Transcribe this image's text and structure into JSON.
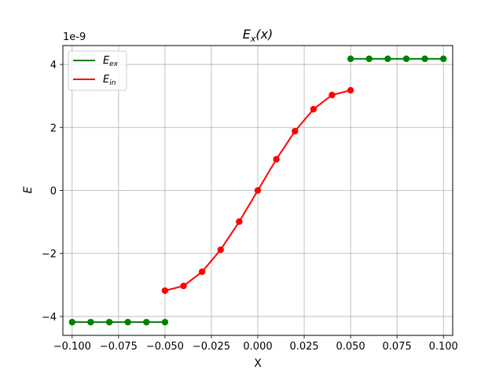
{
  "chart_data": {
    "type": "line",
    "title_base": "E",
    "title_sub": "x",
    "title_tail": "(x)",
    "xlabel": "X",
    "ylabel": "E",
    "offset_label": "1e-9",
    "xlim": [
      -0.105,
      0.105
    ],
    "ylim": [
      -4.6,
      4.6
    ],
    "grid": true,
    "legend_position": "top-left",
    "x_ticks": [
      -0.1,
      -0.075,
      -0.05,
      -0.025,
      0.0,
      0.025,
      0.05,
      0.075,
      0.1
    ],
    "x_tick_labels": [
      "−0.100",
      "−0.075",
      "−0.050",
      "−0.025",
      "0.000",
      "0.025",
      "0.050",
      "0.075",
      "0.100"
    ],
    "y_ticks": [
      -4,
      -2,
      0,
      2,
      4
    ],
    "y_tick_labels": [
      "−4",
      "−2",
      "0",
      "2",
      "4"
    ],
    "series": [
      {
        "name_base": "E",
        "name_sub": "ex",
        "color": "#008000",
        "segments": [
          {
            "x": [
              -0.1,
              -0.09,
              -0.08,
              -0.07,
              -0.06,
              -0.05
            ],
            "y": [
              -4.18,
              -4.18,
              -4.18,
              -4.18,
              -4.18,
              -4.18
            ]
          },
          {
            "x": [
              0.05,
              0.06,
              0.07,
              0.08,
              0.09,
              0.1
            ],
            "y": [
              4.18,
              4.18,
              4.18,
              4.18,
              4.18,
              4.18
            ]
          }
        ]
      },
      {
        "name_base": "E",
        "name_sub": "in",
        "color": "#ff0000",
        "segments": [
          {
            "x": [
              -0.05,
              -0.04,
              -0.03,
              -0.02,
              -0.01,
              0.0,
              0.01,
              0.02,
              0.03,
              0.04,
              0.05
            ],
            "y": [
              -3.18,
              -3.03,
              -2.58,
              -1.88,
              -0.99,
              0.0,
              0.99,
              1.88,
              2.58,
              3.03,
              3.18
            ]
          }
        ]
      }
    ]
  }
}
